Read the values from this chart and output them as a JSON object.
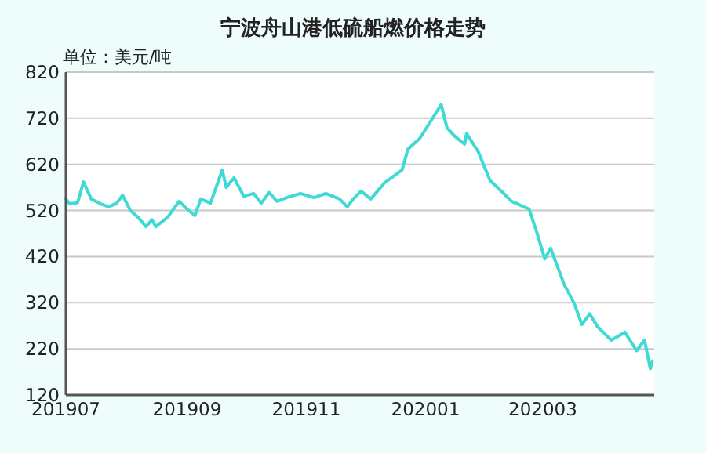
{
  "chart_data": {
    "type": "line",
    "title": "宁波舟山港低硫船燃价格走势",
    "ylabel": "单位：美元/吨",
    "x": [
      "2019-07-01",
      "2019-07-03",
      "2019-07-07",
      "2019-07-10",
      "2019-07-14",
      "2019-07-19",
      "2019-07-23",
      "2019-07-27",
      "2019-07-30",
      "2019-08-03",
      "2019-08-07",
      "2019-08-11",
      "2019-08-14",
      "2019-08-16",
      "2019-08-22",
      "2019-08-28",
      "2019-09-01",
      "2019-09-05",
      "2019-09-08",
      "2019-09-13",
      "2019-09-19",
      "2019-09-21",
      "2019-09-25",
      "2019-09-30",
      "2019-10-05",
      "2019-10-09",
      "2019-10-13",
      "2019-10-17",
      "2019-10-22",
      "2019-10-29",
      "2019-11-05",
      "2019-11-11",
      "2019-11-18",
      "2019-11-22",
      "2019-11-25",
      "2019-11-29",
      "2019-12-04",
      "2019-12-11",
      "2019-12-20",
      "2019-12-23",
      "2019-12-29",
      "2020-01-04",
      "2020-01-09",
      "2020-01-12",
      "2020-01-16",
      "2020-01-21",
      "2020-01-22",
      "2020-01-28",
      "2020-02-03",
      "2020-02-10",
      "2020-02-14",
      "2020-02-23",
      "2020-02-27",
      "2020-03-02",
      "2020-03-05",
      "2020-03-12",
      "2020-03-17",
      "2020-03-21",
      "2020-03-25",
      "2020-03-29",
      "2020-04-05",
      "2020-04-12",
      "2020-04-18",
      "2020-04-22",
      "2020-04-25",
      "2020-04-26"
    ],
    "series": [
      {
        "color": "#3fd9d6",
        "values": [
          545,
          534,
          537,
          582,
          545,
          534,
          528,
          536,
          553,
          520,
          505,
          485,
          500,
          485,
          505,
          540,
          523,
          509,
          545,
          536,
          608,
          570,
          591,
          551,
          557,
          536,
          559,
          540,
          548,
          557,
          548,
          557,
          545,
          528,
          545,
          562,
          545,
          580,
          608,
          653,
          676,
          716,
          750,
          699,
          681,
          664,
          687,
          647,
          585,
          557,
          540,
          523,
          472,
          415,
          438,
          359,
          319,
          273,
          296,
          268,
          239,
          256,
          216,
          239,
          177,
          194
        ]
      }
    ],
    "xlim": [
      "2019-07-01",
      "2020-04-27"
    ],
    "xticks": [
      {
        "value": "2019-07-01",
        "label": "201907"
      },
      {
        "value": "2019-09-01",
        "label": "201909"
      },
      {
        "value": "2019-11-01",
        "label": "201911"
      },
      {
        "value": "2020-01-01",
        "label": "202001"
      },
      {
        "value": "2020-03-01",
        "label": "202003"
      }
    ],
    "ylim": [
      120,
      820
    ],
    "yticks": [
      120,
      220,
      320,
      420,
      520,
      620,
      720,
      820
    ],
    "grid": "y"
  }
}
